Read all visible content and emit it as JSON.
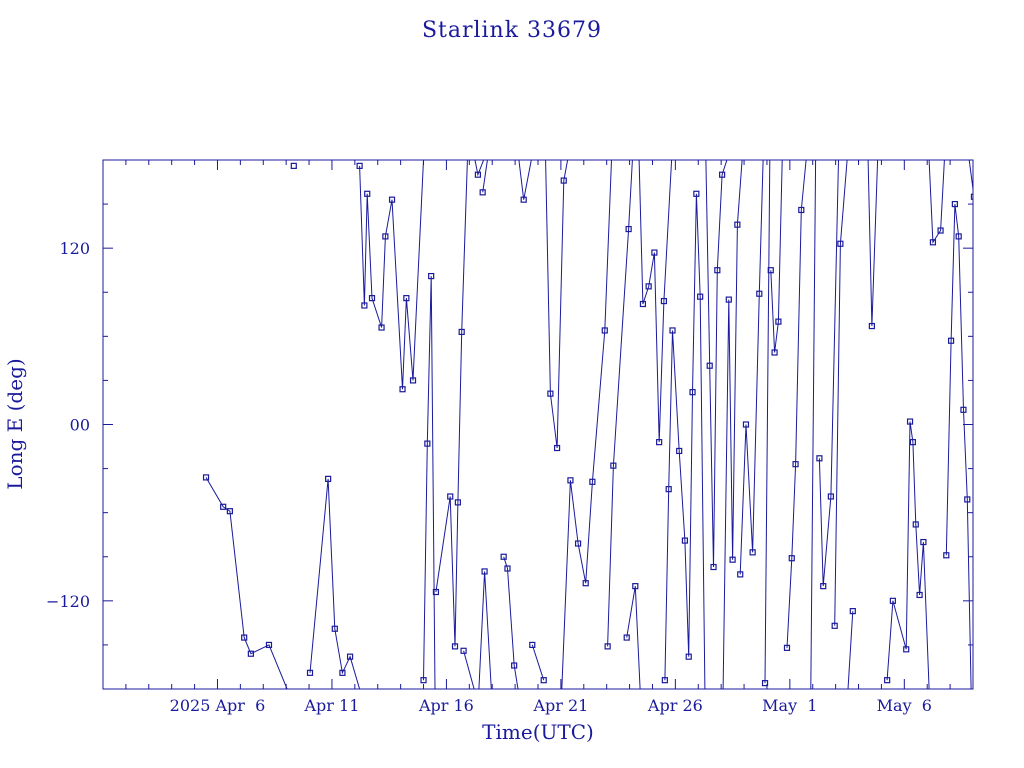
{
  "colors": {
    "ink": "#1a1a9c",
    "background": "#ffffff"
  },
  "chart_data": {
    "type": "line",
    "title": "Starlink 33679",
    "xlabel": "Time(UTC)",
    "ylabel": "Long E (deg)",
    "xlim": [
      "2025-04-01",
      "2025-05-09"
    ],
    "ylim": [
      -180,
      180
    ],
    "x_tick_labels": [
      {
        "date": "2025-04-06",
        "label": "2025 Apr  6"
      },
      {
        "date": "2025-04-11",
        "label": "Apr 11"
      },
      {
        "date": "2025-04-16",
        "label": "Apr 16"
      },
      {
        "date": "2025-04-21",
        "label": "Apr 21"
      },
      {
        "date": "2025-04-26",
        "label": "Apr 26"
      },
      {
        "date": "2025-05-01",
        "label": "May  1"
      },
      {
        "date": "2025-05-06",
        "label": "May  6"
      }
    ],
    "y_tick_labels": [
      {
        "value": 120,
        "label": "120"
      },
      {
        "value": 0,
        "label": "00"
      },
      {
        "value": -120,
        "label": "−120"
      }
    ],
    "grid": false,
    "series": [
      {
        "points": [
          [
            "2025-04-05 12:00",
            -36
          ],
          [
            "2025-04-06 06:00",
            -56
          ],
          [
            "2025-04-06 13:00",
            -59
          ],
          [
            "2025-04-07 04:00",
            -145
          ],
          [
            "2025-04-07 11:00",
            -156
          ],
          [
            "2025-04-08 06:00",
            -150
          ],
          [
            "2025-04-09 01:00",
            -180
          ],
          null,
          [
            "2025-04-09 08:00",
            176
          ],
          null,
          [
            "2025-04-10 01:00",
            -169
          ],
          [
            "2025-04-10 20:00",
            -37
          ],
          [
            "2025-04-11 03:00",
            -139
          ],
          [
            "2025-04-11 11:00",
            -169
          ],
          [
            "2025-04-11 19:00",
            -158
          ],
          [
            "2025-04-12 05:00",
            -180
          ],
          null,
          [
            "2025-04-12 05:00",
            176
          ],
          [
            "2025-04-12 10:00",
            81
          ],
          [
            "2025-04-12 13:00",
            157
          ],
          [
            "2025-04-12 18:00",
            86
          ],
          [
            "2025-04-13 04:00",
            66
          ],
          [
            "2025-04-13 08:00",
            128
          ],
          [
            "2025-04-13 15:00",
            153
          ],
          [
            "2025-04-14 02:00",
            24
          ],
          [
            "2025-04-14 06:00",
            86
          ],
          [
            "2025-04-14 13:00",
            30
          ],
          [
            "2025-04-15 00:00",
            180
          ],
          null,
          [
            "2025-04-15 00:00",
            -174
          ],
          [
            "2025-04-15 04:00",
            -13
          ],
          [
            "2025-04-15 08:00",
            101
          ],
          [
            "2025-04-15 12:00",
            -180
          ],
          null,
          [
            "2025-04-15 13:00",
            -114
          ],
          [
            "2025-04-16 04:00",
            -49
          ],
          [
            "2025-04-16 09:00",
            -151
          ],
          [
            "2025-04-16 12:00",
            -53
          ],
          [
            "2025-04-16 16:00",
            63
          ],
          [
            "2025-04-16 22:00",
            180
          ],
          null,
          [
            "2025-04-16 18:00",
            -154
          ],
          [
            "2025-04-17 05:00",
            -180
          ],
          null,
          [
            "2025-04-17 06:00",
            180
          ],
          [
            "2025-04-17 09:00",
            170
          ],
          [
            "2025-04-17 15:00",
            180
          ],
          null,
          [
            "2025-04-17 10:00",
            -180
          ],
          [
            "2025-04-17 16:00",
            -100
          ],
          [
            "2025-04-17 23:00",
            -180
          ],
          null,
          [
            "2025-04-17 14:00",
            158
          ],
          [
            "2025-04-17 19:00",
            180
          ],
          null,
          [
            "2025-04-18 12:00",
            -90
          ],
          [
            "2025-04-18 16:00",
            -98
          ],
          [
            "2025-04-18 23:00",
            -164
          ],
          [
            "2025-04-19 03:00",
            -180
          ],
          null,
          [
            "2025-04-19 04:00",
            180
          ],
          [
            "2025-04-19 09:00",
            153
          ],
          [
            "2025-04-19 17:00",
            180
          ],
          null,
          [
            "2025-04-19 18:00",
            -150
          ],
          [
            "2025-04-20 06:00",
            -174
          ],
          null,
          [
            "2025-04-20 08:00",
            180
          ],
          [
            "2025-04-20 13:00",
            21
          ],
          [
            "2025-04-20 20:00",
            -16
          ],
          [
            "2025-04-21 03:00",
            166
          ],
          [
            "2025-04-21 07:00",
            180
          ],
          null,
          [
            "2025-04-21 01:00",
            -180
          ],
          [
            "2025-04-21 10:00",
            -38
          ],
          [
            "2025-04-21 18:00",
            -81
          ],
          [
            "2025-04-22 02:00",
            -108
          ],
          [
            "2025-04-22 09:00",
            -39
          ],
          [
            "2025-04-22 22:00",
            64
          ],
          [
            "2025-04-23 05:00",
            180
          ],
          null,
          [
            "2025-04-23 01:00",
            -151
          ],
          [
            "2025-04-23 07:00",
            -28
          ],
          [
            "2025-04-23 23:00",
            133
          ],
          [
            "2025-04-24 03:00",
            180
          ],
          null,
          [
            "2025-04-23 21:00",
            -145
          ],
          [
            "2025-04-24 06:00",
            -110
          ],
          [
            "2025-04-24 11:00",
            -180
          ],
          null,
          [
            "2025-04-24 10:00",
            180
          ],
          [
            "2025-04-24 14:00",
            82
          ],
          [
            "2025-04-24 20:00",
            94
          ],
          [
            "2025-04-25 02:00",
            117
          ],
          [
            "2025-04-25 07:00",
            -12
          ],
          [
            "2025-04-25 12:00",
            84
          ],
          [
            "2025-04-25 20:00",
            180
          ],
          null,
          [
            "2025-04-25 13:00",
            -174
          ],
          [
            "2025-04-25 17:00",
            -44
          ],
          [
            "2025-04-25 21:00",
            64
          ],
          [
            "2025-04-26 04:00",
            -18
          ],
          [
            "2025-04-26 10:00",
            -79
          ],
          [
            "2025-04-26 14:00",
            -158
          ],
          [
            "2025-04-26 18:00",
            22
          ],
          [
            "2025-04-26 22:00",
            157
          ],
          [
            "2025-04-27 02:00",
            87
          ],
          [
            "2025-04-27 07:00",
            -180
          ],
          null,
          [
            "2025-04-27 08:00",
            180
          ],
          [
            "2025-04-27 12:00",
            40
          ],
          [
            "2025-04-27 16:00",
            -97
          ],
          [
            "2025-04-27 20:00",
            105
          ],
          [
            "2025-04-28 01:00",
            170
          ],
          [
            "2025-04-28 06:00",
            180
          ],
          null,
          [
            "2025-04-28 02:00",
            -180
          ],
          [
            "2025-04-28 08:00",
            85
          ],
          [
            "2025-04-28 12:00",
            -92
          ],
          [
            "2025-04-28 17:00",
            136
          ],
          [
            "2025-04-28 22:00",
            180
          ],
          null,
          [
            "2025-04-28 20:00",
            -102
          ],
          [
            "2025-04-29 02:00",
            0
          ],
          [
            "2025-04-29 09:00",
            -87
          ],
          [
            "2025-04-29 16:00",
            89
          ],
          [
            "2025-04-29 20:00",
            180
          ],
          null,
          [
            "2025-04-29 22:00",
            -176
          ],
          [
            "2025-04-30 03:00",
            180
          ],
          null,
          [
            "2025-04-30 04:00",
            105
          ],
          [
            "2025-04-30 08:00",
            49
          ],
          [
            "2025-04-30 12:00",
            70
          ],
          [
            "2025-04-30 16:00",
            180
          ],
          null,
          [
            "2025-04-30 21:00",
            -152
          ],
          [
            "2025-05-01 02:00",
            -91
          ],
          [
            "2025-05-01 06:00",
            -27
          ],
          [
            "2025-05-01 12:00",
            146
          ],
          [
            "2025-05-01 17:00",
            180
          ],
          null,
          [
            "2025-05-01 22:00",
            -180
          ],
          [
            "2025-05-02 03:00",
            180
          ],
          null,
          [
            "2025-05-02 07:00",
            -23
          ],
          [
            "2025-05-02 11:00",
            -110
          ],
          [
            "2025-05-02 19:00",
            -49
          ],
          [
            "2025-05-03 03:00",
            180
          ],
          null,
          [
            "2025-05-02 23:00",
            -137
          ],
          [
            "2025-05-03 05:00",
            123
          ],
          [
            "2025-05-03 12:00",
            180
          ],
          null,
          [
            "2025-05-03 13:00",
            -180
          ],
          [
            "2025-05-03 18:00",
            -127
          ],
          null,
          [
            "2025-05-04 10:00",
            180
          ],
          [
            "2025-05-04 14:00",
            67
          ],
          [
            "2025-05-04 20:00",
            180
          ],
          null,
          [
            "2025-05-05 06:00",
            -174
          ],
          [
            "2025-05-05 12:00",
            -120
          ],
          [
            "2025-05-06 02:00",
            -153
          ],
          [
            "2025-05-06 06:00",
            2
          ],
          [
            "2025-05-06 09:00",
            -12
          ],
          [
            "2025-05-06 12:00",
            -68
          ],
          [
            "2025-05-06 16:00",
            -116
          ],
          [
            "2025-05-06 20:00",
            -80
          ],
          [
            "2025-05-07 02:00",
            -180
          ],
          null,
          [
            "2025-05-07 02:00",
            180
          ],
          [
            "2025-05-07 06:00",
            124
          ],
          [
            "2025-05-07 14:00",
            132
          ],
          [
            "2025-05-07 18:00",
            180
          ],
          null,
          [
            "2025-05-07 20:00",
            -89
          ],
          [
            "2025-05-08 01:00",
            57
          ],
          [
            "2025-05-08 05:00",
            150
          ],
          [
            "2025-05-08 09:00",
            128
          ],
          [
            "2025-05-08 14:00",
            10
          ],
          [
            "2025-05-08 18:00",
            -51
          ],
          [
            "2025-05-08 22:00",
            -180
          ],
          null,
          [
            "2025-05-08 20:00",
            180
          ],
          [
            "2025-05-09 01:00",
            155
          ]
        ]
      }
    ]
  }
}
